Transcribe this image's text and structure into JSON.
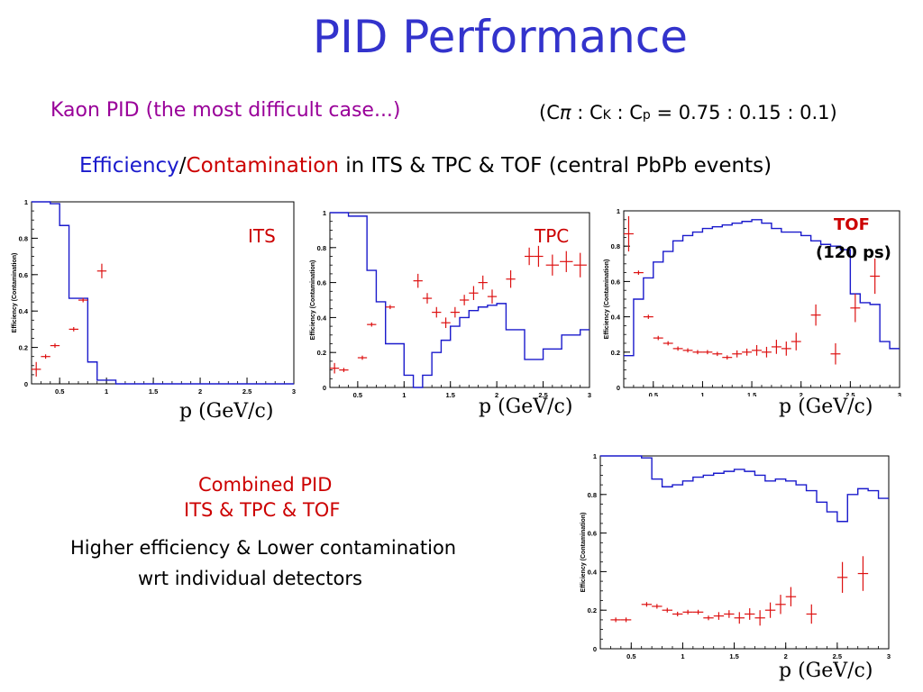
{
  "slide": {
    "title": "PID Performance",
    "kaon_line": "Kaon PID (the most difficult case...)",
    "fractions": {
      "open": "(C",
      "pi": "π",
      "colon1": " : C",
      "k": "K",
      "colon2": " : C",
      "p": "p",
      "values": " = 0.75 : 0.15 : 0.1)"
    },
    "eff_line": {
      "efficiency": "Efficiency",
      "slash": "/",
      "contamination": "Contamination",
      "rest": " in ITS & TPC & TOF  (central PbPb events)"
    },
    "combined_l1": "Combined PID",
    "combined_l2": "ITS & TPC & TOF",
    "higher_l1": "Higher efficiency & Lower contamination",
    "higher_l2": "wrt individual detectors",
    "xlabel": "p (GeV/c)"
  },
  "colors": {
    "efficiency": "#1a1acc",
    "contamination": "#dd1111",
    "title": "#3333cc"
  },
  "chart_data": [
    {
      "id": "its",
      "type": "line",
      "label": "ITS",
      "ylabel": "Efficiency (Contamination)",
      "xlabel": "p (GeV/c)",
      "xlim": [
        0.2,
        3.0
      ],
      "ylim": [
        0,
        1.0
      ],
      "xticks": [
        "0.5",
        "1",
        "1.5",
        "2",
        "2.5",
        "3"
      ],
      "yticks": [
        "0",
        "0.2",
        "0.4",
        "0.6",
        "0.8",
        "1"
      ],
      "efficiency_edges": [
        0.2,
        0.3,
        0.4,
        0.5,
        0.6,
        0.7,
        0.8,
        0.9,
        1.0,
        1.1,
        3.0
      ],
      "efficiency_values": [
        1.0,
        1.0,
        0.99,
        0.87,
        0.47,
        0.47,
        0.12,
        0.02,
        0.02,
        0.0
      ],
      "contamination": [
        {
          "x": 0.25,
          "y": 0.08,
          "dx": 0.05,
          "dy": 0.04
        },
        {
          "x": 0.35,
          "y": 0.15,
          "dx": 0.05,
          "dy": 0.0
        },
        {
          "x": 0.45,
          "y": 0.21,
          "dx": 0.05,
          "dy": 0.0
        },
        {
          "x": 0.65,
          "y": 0.3,
          "dx": 0.05,
          "dy": 0.0
        },
        {
          "x": 0.75,
          "y": 0.46,
          "dx": 0.05,
          "dy": 0.0
        },
        {
          "x": 0.95,
          "y": 0.62,
          "dx": 0.05,
          "dy": 0.04
        }
      ]
    },
    {
      "id": "tpc",
      "type": "line",
      "label": "TPC",
      "ylabel": "Efficiency (Contamination)",
      "xlabel": "p (GeV/c)",
      "xlim": [
        0.2,
        3.0
      ],
      "ylim": [
        0,
        1.0
      ],
      "xticks": [
        "0.5",
        "1",
        "1.5",
        "2",
        "2.5",
        "3"
      ],
      "yticks": [
        "0",
        "0.2",
        "0.4",
        "0.6",
        "0.8",
        "1"
      ],
      "efficiency_edges": [
        0.2,
        0.4,
        0.6,
        0.7,
        0.8,
        1.0,
        1.1,
        1.2,
        1.3,
        1.4,
        1.5,
        1.6,
        1.7,
        1.8,
        1.9,
        2.0,
        2.1,
        2.3,
        2.4,
        2.5,
        2.7,
        2.9,
        3.0
      ],
      "efficiency_values": [
        1.0,
        0.98,
        0.67,
        0.49,
        0.25,
        0.07,
        0.0,
        0.07,
        0.2,
        0.27,
        0.35,
        0.4,
        0.44,
        0.46,
        0.47,
        0.48,
        0.33,
        0.16,
        0.16,
        0.22,
        0.3,
        0.33
      ],
      "contamination": [
        {
          "x": 0.25,
          "y": 0.11,
          "dx": 0.05,
          "dy": 0.03
        },
        {
          "x": 0.35,
          "y": 0.1,
          "dx": 0.05,
          "dy": 0.0
        },
        {
          "x": 0.55,
          "y": 0.17,
          "dx": 0.05,
          "dy": 0.0
        },
        {
          "x": 0.65,
          "y": 0.36,
          "dx": 0.05,
          "dy": 0.0
        },
        {
          "x": 0.85,
          "y": 0.46,
          "dx": 0.05,
          "dy": 0.0
        },
        {
          "x": 1.15,
          "y": 0.61,
          "dx": 0.05,
          "dy": 0.04
        },
        {
          "x": 1.25,
          "y": 0.51,
          "dx": 0.05,
          "dy": 0.03
        },
        {
          "x": 1.35,
          "y": 0.43,
          "dx": 0.05,
          "dy": 0.03
        },
        {
          "x": 1.45,
          "y": 0.37,
          "dx": 0.05,
          "dy": 0.03
        },
        {
          "x": 1.55,
          "y": 0.43,
          "dx": 0.05,
          "dy": 0.03
        },
        {
          "x": 1.65,
          "y": 0.5,
          "dx": 0.05,
          "dy": 0.03
        },
        {
          "x": 1.75,
          "y": 0.54,
          "dx": 0.05,
          "dy": 0.04
        },
        {
          "x": 1.85,
          "y": 0.6,
          "dx": 0.05,
          "dy": 0.04
        },
        {
          "x": 1.95,
          "y": 0.52,
          "dx": 0.05,
          "dy": 0.04
        },
        {
          "x": 2.15,
          "y": 0.62,
          "dx": 0.05,
          "dy": 0.05
        },
        {
          "x": 2.35,
          "y": 0.75,
          "dx": 0.05,
          "dy": 0.05
        },
        {
          "x": 2.45,
          "y": 0.75,
          "dx": 0.05,
          "dy": 0.06
        },
        {
          "x": 2.6,
          "y": 0.7,
          "dx": 0.07,
          "dy": 0.06
        },
        {
          "x": 2.75,
          "y": 0.72,
          "dx": 0.07,
          "dy": 0.06
        },
        {
          "x": 2.9,
          "y": 0.7,
          "dx": 0.07,
          "dy": 0.07
        }
      ]
    },
    {
      "id": "tof",
      "type": "line",
      "label": "TOF",
      "label2": "(120 ps)",
      "ylabel": "Efficiency (Contamination)",
      "xlabel": "p (GeV/c)",
      "xlim": [
        0.2,
        3.0
      ],
      "ylim": [
        0,
        1.0
      ],
      "xticks": [
        "0.5",
        "1",
        "1.5",
        "2",
        "2.5",
        "3"
      ],
      "yticks": [
        "0",
        "0.2",
        "0.4",
        "0.6",
        "0.8",
        "1"
      ],
      "efficiency_edges": [
        0.2,
        0.3,
        0.4,
        0.5,
        0.6,
        0.7,
        0.8,
        0.9,
        1.0,
        1.1,
        1.2,
        1.3,
        1.4,
        1.5,
        1.6,
        1.7,
        1.8,
        1.9,
        2.0,
        2.1,
        2.2,
        2.3,
        2.4,
        2.5,
        2.6,
        2.7,
        2.8,
        2.9,
        3.0
      ],
      "efficiency_values": [
        0.18,
        0.5,
        0.62,
        0.71,
        0.77,
        0.83,
        0.86,
        0.88,
        0.9,
        0.91,
        0.92,
        0.93,
        0.94,
        0.95,
        0.93,
        0.9,
        0.88,
        0.88,
        0.86,
        0.83,
        0.81,
        0.8,
        0.78,
        0.53,
        0.48,
        0.47,
        0.26,
        0.22
      ],
      "contamination": [
        {
          "x": 0.25,
          "y": 0.87,
          "dx": 0.05,
          "dy": 0.1
        },
        {
          "x": 0.35,
          "y": 0.65,
          "dx": 0.05,
          "dy": 0.0
        },
        {
          "x": 0.45,
          "y": 0.4,
          "dx": 0.05,
          "dy": 0.0
        },
        {
          "x": 0.55,
          "y": 0.28,
          "dx": 0.05,
          "dy": 0.0
        },
        {
          "x": 0.65,
          "y": 0.25,
          "dx": 0.05,
          "dy": 0.0
        },
        {
          "x": 0.75,
          "y": 0.22,
          "dx": 0.05,
          "dy": 0.0
        },
        {
          "x": 0.85,
          "y": 0.21,
          "dx": 0.05,
          "dy": 0.0
        },
        {
          "x": 0.95,
          "y": 0.2,
          "dx": 0.05,
          "dy": 0.0
        },
        {
          "x": 1.05,
          "y": 0.2,
          "dx": 0.05,
          "dy": 0.0
        },
        {
          "x": 1.15,
          "y": 0.19,
          "dx": 0.05,
          "dy": 0.0
        },
        {
          "x": 1.25,
          "y": 0.17,
          "dx": 0.05,
          "dy": 0.0
        },
        {
          "x": 1.35,
          "y": 0.19,
          "dx": 0.05,
          "dy": 0.02
        },
        {
          "x": 1.45,
          "y": 0.2,
          "dx": 0.05,
          "dy": 0.02
        },
        {
          "x": 1.55,
          "y": 0.21,
          "dx": 0.05,
          "dy": 0.03
        },
        {
          "x": 1.65,
          "y": 0.2,
          "dx": 0.05,
          "dy": 0.03
        },
        {
          "x": 1.75,
          "y": 0.23,
          "dx": 0.05,
          "dy": 0.04
        },
        {
          "x": 1.85,
          "y": 0.22,
          "dx": 0.05,
          "dy": 0.04
        },
        {
          "x": 1.95,
          "y": 0.26,
          "dx": 0.05,
          "dy": 0.05
        },
        {
          "x": 2.15,
          "y": 0.41,
          "dx": 0.05,
          "dy": 0.06
        },
        {
          "x": 2.35,
          "y": 0.19,
          "dx": 0.05,
          "dy": 0.06
        },
        {
          "x": 2.55,
          "y": 0.45,
          "dx": 0.05,
          "dy": 0.08
        },
        {
          "x": 2.75,
          "y": 0.63,
          "dx": 0.05,
          "dy": 0.1
        }
      ]
    },
    {
      "id": "combined",
      "type": "line",
      "label": "",
      "ylabel": "Efficiency (Contamination)",
      "xlabel": "p (GeV/c)",
      "xlim": [
        0.2,
        3.0
      ],
      "ylim": [
        0,
        1.0
      ],
      "xticks": [
        "0.5",
        "1",
        "1.5",
        "2",
        "2.5",
        "3"
      ],
      "yticks": [
        "0",
        "0.2",
        "0.4",
        "0.6",
        "0.8",
        "1"
      ],
      "efficiency_edges": [
        0.2,
        0.3,
        0.4,
        0.5,
        0.6,
        0.7,
        0.8,
        0.9,
        1.0,
        1.1,
        1.2,
        1.3,
        1.4,
        1.5,
        1.6,
        1.7,
        1.8,
        1.9,
        2.0,
        2.1,
        2.2,
        2.3,
        2.4,
        2.5,
        2.6,
        2.7,
        2.8,
        2.9,
        3.0
      ],
      "efficiency_values": [
        1.0,
        1.0,
        1.0,
        1.0,
        0.99,
        0.88,
        0.84,
        0.85,
        0.87,
        0.89,
        0.9,
        0.91,
        0.92,
        0.93,
        0.92,
        0.9,
        0.87,
        0.88,
        0.87,
        0.85,
        0.82,
        0.76,
        0.71,
        0.66,
        0.8,
        0.83,
        0.82,
        0.78
      ],
      "contamination": [
        {
          "x": 0.35,
          "y": 0.15,
          "dx": 0.05,
          "dy": 0.0
        },
        {
          "x": 0.45,
          "y": 0.15,
          "dx": 0.05,
          "dy": 0.0
        },
        {
          "x": 0.65,
          "y": 0.23,
          "dx": 0.05,
          "dy": 0.0
        },
        {
          "x": 0.75,
          "y": 0.22,
          "dx": 0.05,
          "dy": 0.0
        },
        {
          "x": 0.85,
          "y": 0.2,
          "dx": 0.05,
          "dy": 0.0
        },
        {
          "x": 0.95,
          "y": 0.18,
          "dx": 0.05,
          "dy": 0.0
        },
        {
          "x": 1.05,
          "y": 0.19,
          "dx": 0.05,
          "dy": 0.0
        },
        {
          "x": 1.15,
          "y": 0.19,
          "dx": 0.05,
          "dy": 0.0
        },
        {
          "x": 1.25,
          "y": 0.16,
          "dx": 0.05,
          "dy": 0.0
        },
        {
          "x": 1.35,
          "y": 0.17,
          "dx": 0.05,
          "dy": 0.02
        },
        {
          "x": 1.45,
          "y": 0.18,
          "dx": 0.05,
          "dy": 0.02
        },
        {
          "x": 1.55,
          "y": 0.16,
          "dx": 0.05,
          "dy": 0.03
        },
        {
          "x": 1.65,
          "y": 0.18,
          "dx": 0.05,
          "dy": 0.03
        },
        {
          "x": 1.75,
          "y": 0.16,
          "dx": 0.05,
          "dy": 0.04
        },
        {
          "x": 1.85,
          "y": 0.2,
          "dx": 0.05,
          "dy": 0.04
        },
        {
          "x": 1.95,
          "y": 0.23,
          "dx": 0.05,
          "dy": 0.05
        },
        {
          "x": 2.05,
          "y": 0.27,
          "dx": 0.05,
          "dy": 0.05
        },
        {
          "x": 2.25,
          "y": 0.18,
          "dx": 0.05,
          "dy": 0.05
        },
        {
          "x": 2.55,
          "y": 0.37,
          "dx": 0.05,
          "dy": 0.08
        },
        {
          "x": 2.75,
          "y": 0.39,
          "dx": 0.05,
          "dy": 0.09
        }
      ]
    }
  ]
}
